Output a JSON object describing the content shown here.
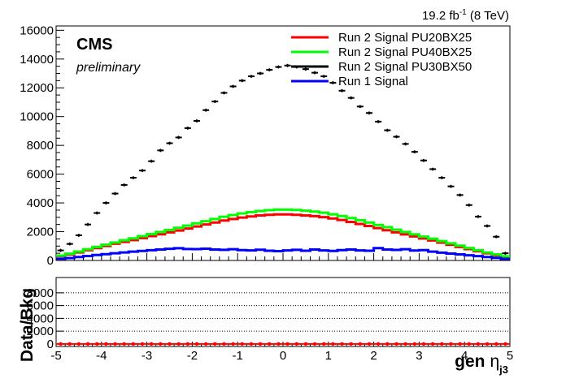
{
  "lumi": {
    "prefix": "19.2 fb",
    "exponent": "-1",
    "suffix": " (8 TeV)"
  },
  "cms_label": "CMS",
  "preliminary_label": "preliminary",
  "colors": {
    "pu20bx25": "#ff0000",
    "pu40bx25": "#00ff00",
    "pu30bx50": "#000000",
    "run1": "#0000ff",
    "frame": "#000000"
  },
  "chart_data": [
    {
      "type": "line",
      "description_role": "main histogram panel",
      "xlim": [
        -5,
        5
      ],
      "ylim": [
        0,
        16300
      ],
      "y_ticks": [
        0,
        2000,
        4000,
        6000,
        8000,
        10000,
        12000,
        14000,
        16000
      ],
      "y_tick_labels": [
        "0",
        "2000",
        "4000",
        "6000",
        "8000",
        "10000",
        "12000",
        "14000",
        "16000"
      ],
      "legend_position": "top-right",
      "x": [
        -4.9,
        -4.7,
        -4.5,
        -4.3,
        -4.1,
        -3.9,
        -3.7,
        -3.5,
        -3.3,
        -3.1,
        -2.9,
        -2.7,
        -2.5,
        -2.3,
        -2.1,
        -1.9,
        -1.7,
        -1.5,
        -1.3,
        -1.1,
        -0.9,
        -0.7,
        -0.5,
        -0.3,
        -0.1,
        0.1,
        0.3,
        0.5,
        0.7,
        0.9,
        1.1,
        1.3,
        1.5,
        1.7,
        1.9,
        2.1,
        2.3,
        2.5,
        2.7,
        2.9,
        3.1,
        3.3,
        3.5,
        3.7,
        3.9,
        4.1,
        4.3,
        4.5,
        4.7,
        4.9
      ],
      "series": [
        {
          "name": "Run 2 Signal PU20BX25",
          "style": "step",
          "color_key": "pu20bx25",
          "values": [
            300,
            420,
            560,
            710,
            860,
            1010,
            1160,
            1290,
            1420,
            1560,
            1690,
            1820,
            1950,
            2080,
            2220,
            2360,
            2500,
            2640,
            2780,
            2880,
            2980,
            3060,
            3130,
            3170,
            3200,
            3200,
            3170,
            3130,
            3080,
            3010,
            2920,
            2810,
            2680,
            2540,
            2400,
            2250,
            2100,
            1950,
            1810,
            1670,
            1530,
            1390,
            1240,
            1090,
            940,
            790,
            640,
            500,
            370,
            250
          ]
        },
        {
          "name": "Run 2 Signal PU40BX25",
          "style": "step",
          "color_key": "pu40bx25",
          "values": [
            340,
            470,
            620,
            780,
            940,
            1100,
            1250,
            1400,
            1540,
            1690,
            1830,
            1980,
            2120,
            2270,
            2420,
            2580,
            2730,
            2880,
            3040,
            3160,
            3270,
            3360,
            3440,
            3500,
            3530,
            3530,
            3510,
            3460,
            3400,
            3320,
            3210,
            3090,
            2950,
            2800,
            2640,
            2470,
            2310,
            2140,
            1980,
            1820,
            1660,
            1510,
            1350,
            1190,
            1030,
            870,
            710,
            560,
            420,
            290
          ]
        },
        {
          "name": "Run 2 Signal PU30BX50",
          "style": "markers",
          "color_key": "pu30bx50",
          "values": [
            700,
            1150,
            1750,
            2500,
            3300,
            4000,
            4650,
            5250,
            5750,
            6250,
            6900,
            7650,
            8150,
            8550,
            9200,
            9700,
            10450,
            11050,
            11650,
            12100,
            12500,
            12800,
            13000,
            13250,
            13450,
            13550,
            13450,
            13300,
            13050,
            12800,
            12350,
            11800,
            11300,
            10700,
            10250,
            9650,
            9050,
            8600,
            8100,
            7550,
            6950,
            6350,
            5750,
            5150,
            4550,
            3850,
            3050,
            2400,
            1650,
            500
          ]
        },
        {
          "name": "Run 1 Signal",
          "style": "step",
          "color_key": "run1",
          "values": [
            120,
            170,
            240,
            310,
            380,
            440,
            500,
            560,
            610,
            660,
            710,
            760,
            810,
            850,
            800,
            790,
            820,
            760,
            740,
            780,
            720,
            700,
            750,
            680,
            650,
            700,
            740,
            680,
            760,
            700,
            660,
            720,
            760,
            700,
            680,
            860,
            760,
            730,
            780,
            690,
            720,
            610,
            540,
            480,
            420,
            360,
            300,
            240,
            180,
            110
          ]
        }
      ]
    },
    {
      "type": "line",
      "description_role": "ratio panel",
      "xlim": [
        -5,
        5
      ],
      "ylim": [
        -400,
        10400
      ],
      "y_ticks": [
        0,
        2000,
        4000,
        6000,
        8000
      ],
      "y_tick_labels": [
        "0",
        "2000",
        "4000",
        "6000",
        "8000"
      ],
      "grid": true,
      "ylabel": "Data/Bkg",
      "xlabel_main": "gen",
      "xlabel_symbol": "η",
      "xlabel_sub": "j3",
      "x_ticks": [
        -5,
        -4,
        -3,
        -2,
        -1,
        0,
        1,
        2,
        3,
        4,
        5
      ],
      "x_tick_labels": [
        "-5",
        "-4",
        "-3",
        "-2",
        "-1",
        "0",
        "1",
        "2",
        "3",
        "4",
        "5"
      ],
      "series": [
        {
          "name": "",
          "style": "markers-flat",
          "color_key": "pu20bx25",
          "value": 0
        }
      ]
    }
  ]
}
